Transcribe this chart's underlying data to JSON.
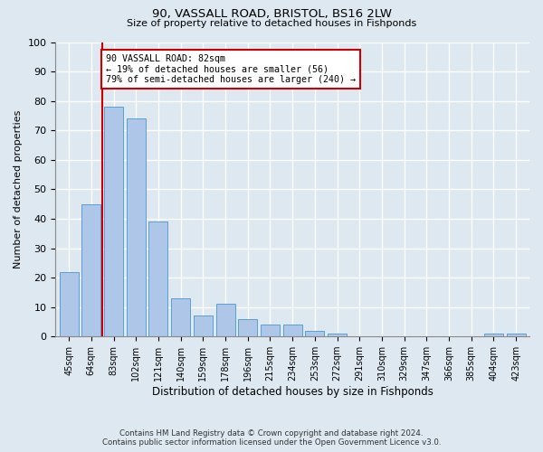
{
  "title": "90, VASSALL ROAD, BRISTOL, BS16 2LW",
  "subtitle": "Size of property relative to detached houses in Fishponds",
  "xlabel": "Distribution of detached houses by size in Fishponds",
  "ylabel": "Number of detached properties",
  "categories": [
    "45sqm",
    "64sqm",
    "83sqm",
    "102sqm",
    "121sqm",
    "140sqm",
    "159sqm",
    "178sqm",
    "196sqm",
    "215sqm",
    "234sqm",
    "253sqm",
    "272sqm",
    "291sqm",
    "310sqm",
    "329sqm",
    "347sqm",
    "366sqm",
    "385sqm",
    "404sqm",
    "423sqm"
  ],
  "values": [
    22,
    45,
    78,
    74,
    39,
    13,
    7,
    11,
    6,
    4,
    4,
    2,
    1,
    0,
    0,
    0,
    0,
    0,
    0,
    1,
    1
  ],
  "bar_color": "#aec6e8",
  "bar_edge_color": "#5a9fd4",
  "vline_x_index": 2,
  "vline_color": "#cc0000",
  "annotation_text": "90 VASSALL ROAD: 82sqm\n← 19% of detached houses are smaller (56)\n79% of semi-detached houses are larger (240) →",
  "annotation_box_color": "#ffffff",
  "annotation_box_edge_color": "#cc0000",
  "ylim": [
    0,
    100
  ],
  "yticks": [
    0,
    10,
    20,
    30,
    40,
    50,
    60,
    70,
    80,
    90,
    100
  ],
  "background_color": "#dde8f0",
  "grid_color": "#ffffff",
  "footer_line1": "Contains HM Land Registry data © Crown copyright and database right 2024.",
  "footer_line2": "Contains public sector information licensed under the Open Government Licence v3.0."
}
